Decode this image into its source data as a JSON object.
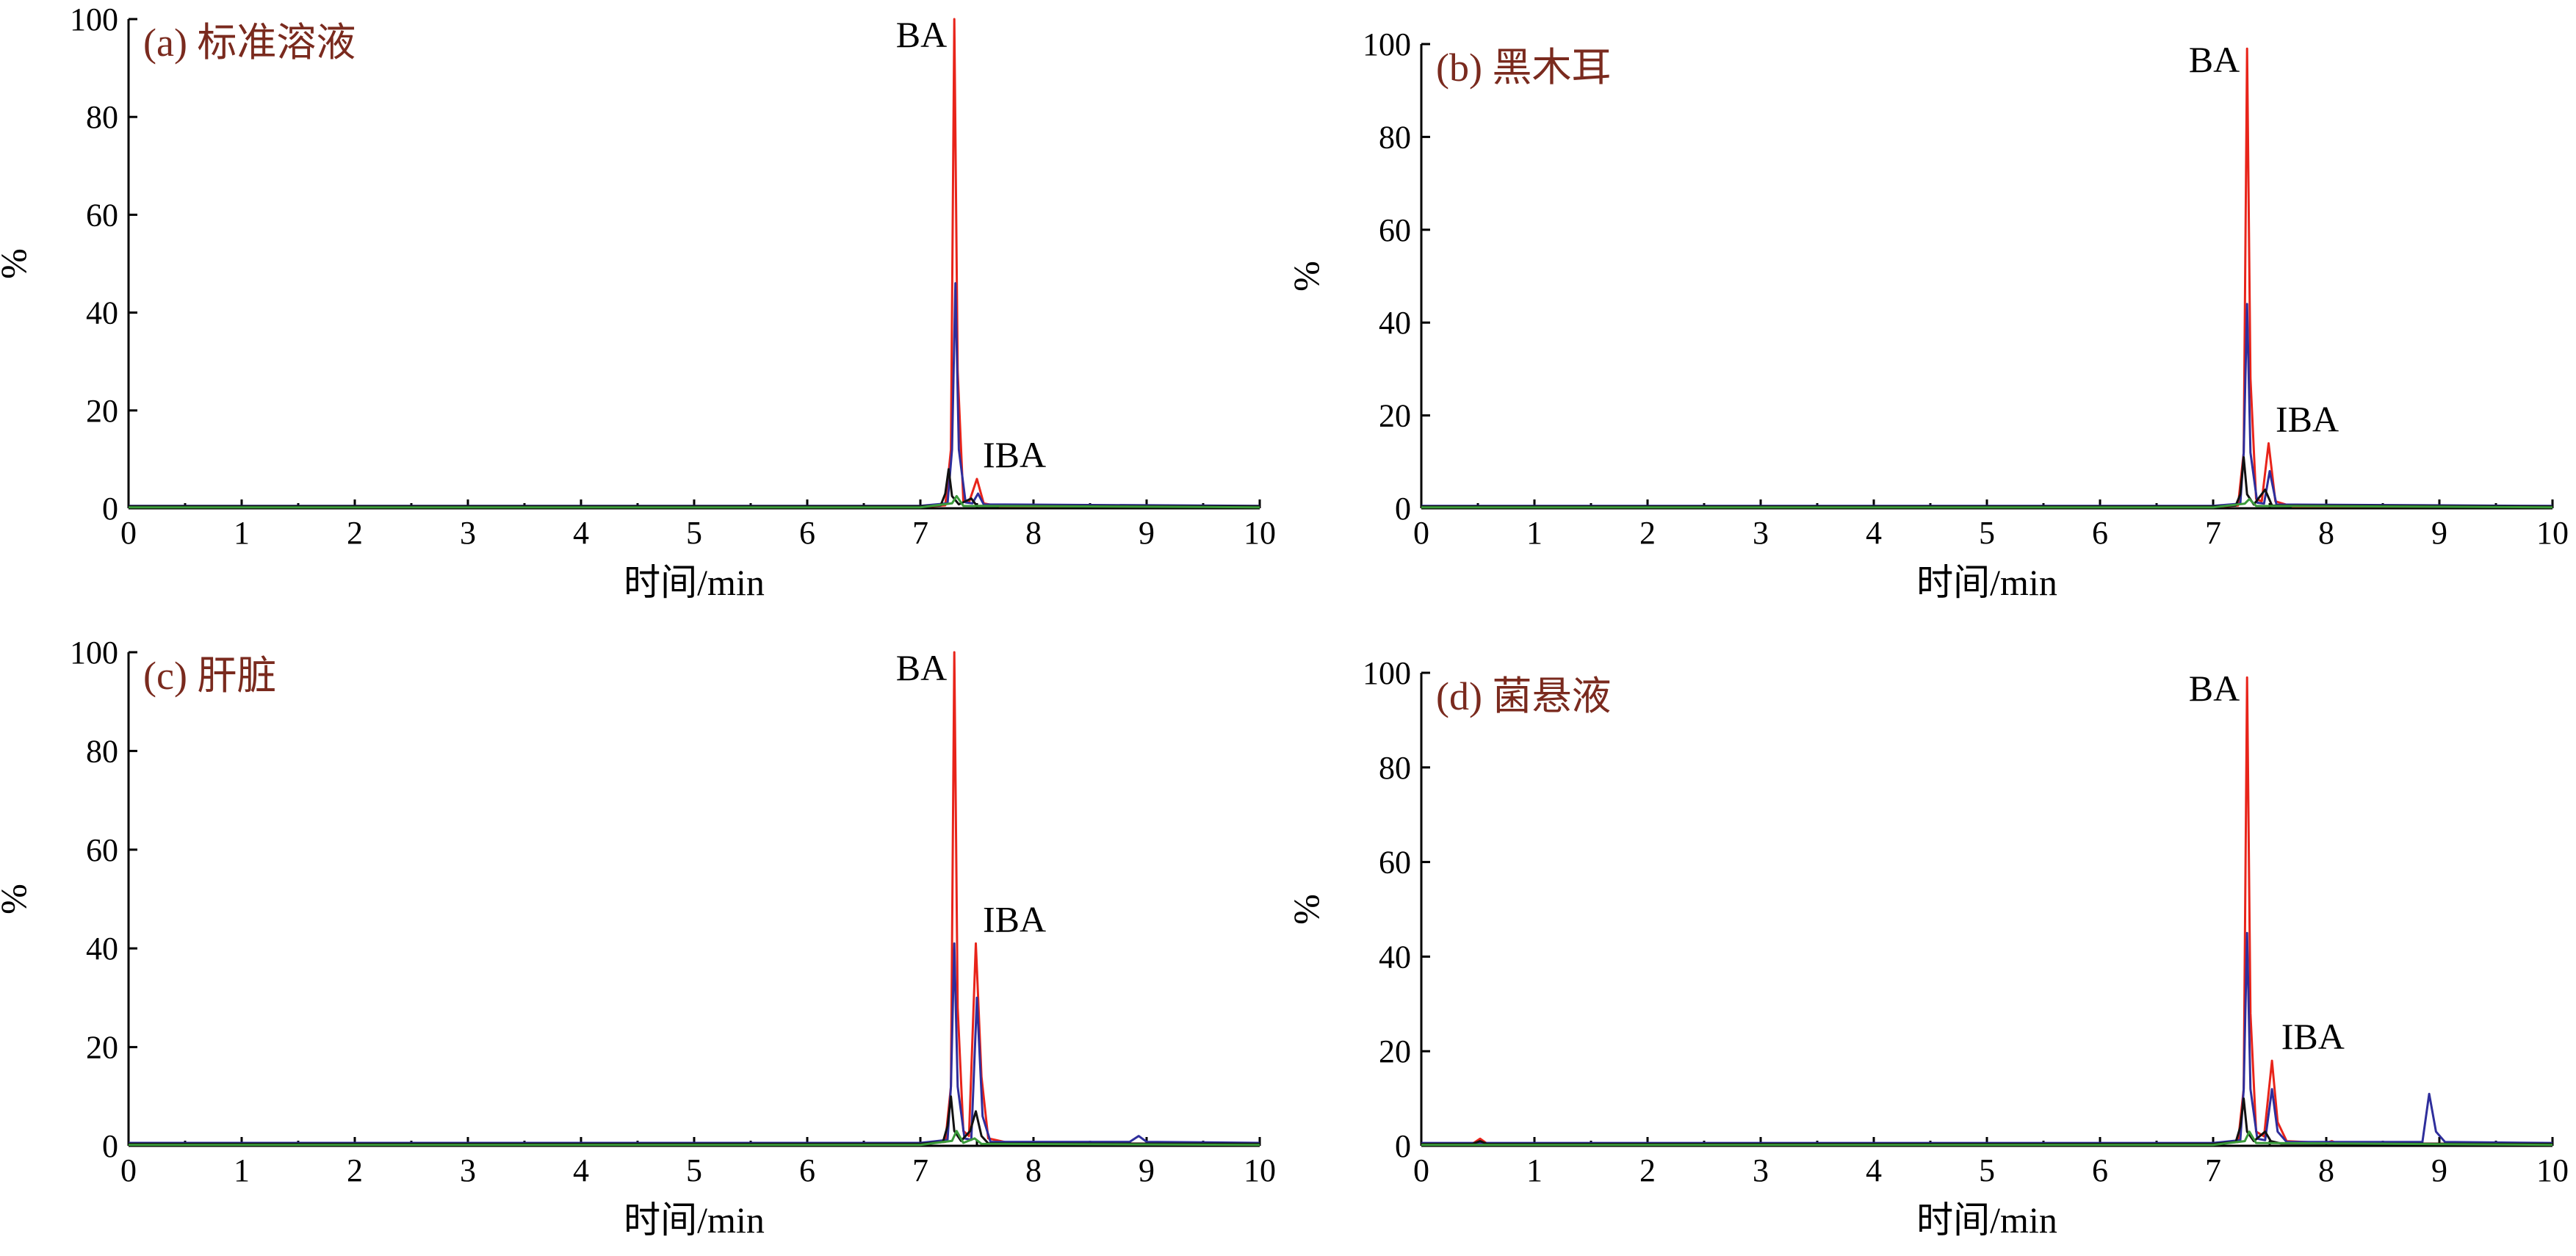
{
  "chart_data": [
    {
      "type": "line",
      "title": "(a) 标准溶液",
      "xlabel": "时间/min",
      "ylabel": "%",
      "xlim": [
        0,
        10
      ],
      "ylim": [
        0,
        100
      ],
      "xticks": [
        "0",
        "1",
        "2",
        "3",
        "4",
        "5",
        "6",
        "7",
        "8",
        "9",
        "10"
      ],
      "yticks": [
        "0",
        "20",
        "40",
        "60",
        "80",
        "100"
      ],
      "annotations": [
        {
          "text": "BA",
          "x": 7.3,
          "y": 100
        },
        {
          "text": "IBA",
          "x": 7.5,
          "y": 6
        }
      ],
      "series": [
        {
          "color": "#e8241a",
          "points": [
            [
              0,
              0.3
            ],
            [
              7.0,
              0.3
            ],
            [
              7.22,
              0.6
            ],
            [
              7.27,
              12
            ],
            [
              7.3,
              100
            ],
            [
              7.33,
              28
            ],
            [
              7.38,
              1.5
            ],
            [
              7.43,
              1.2
            ],
            [
              7.5,
              6
            ],
            [
              7.56,
              1
            ],
            [
              7.7,
              0.4
            ],
            [
              10,
              0.3
            ]
          ]
        },
        {
          "color": "#2e2e9c",
          "points": [
            [
              0,
              0.5
            ],
            [
              7.0,
              0.5
            ],
            [
              7.24,
              1
            ],
            [
              7.28,
              12
            ],
            [
              7.31,
              46
            ],
            [
              7.34,
              12
            ],
            [
              7.4,
              1.2
            ],
            [
              7.46,
              1
            ],
            [
              7.51,
              3
            ],
            [
              7.56,
              0.8
            ],
            [
              10,
              0.5
            ]
          ]
        },
        {
          "color": "#111111",
          "points": [
            [
              0,
              0.4
            ],
            [
              7.0,
              0.4
            ],
            [
              7.18,
              0.6
            ],
            [
              7.22,
              3
            ],
            [
              7.25,
              8
            ],
            [
              7.28,
              2.5
            ],
            [
              7.34,
              0.8
            ],
            [
              7.45,
              2
            ],
            [
              7.5,
              0.5
            ],
            [
              10,
              0.4
            ]
          ]
        },
        {
          "color": "#3a9a3a",
          "points": [
            [
              0,
              0.2
            ],
            [
              7.0,
              0.2
            ],
            [
              7.28,
              1
            ],
            [
              7.32,
              2.5
            ],
            [
              7.38,
              0.5
            ],
            [
              10,
              0.2
            ]
          ]
        }
      ]
    },
    {
      "type": "line",
      "title": "(b) 黑木耳",
      "xlabel": "时间/min",
      "ylabel": "%",
      "xlim": [
        0,
        10
      ],
      "ylim": [
        0,
        100
      ],
      "xticks": [
        "0",
        "1",
        "2",
        "3",
        "4",
        "5",
        "6",
        "7",
        "8",
        "9",
        "10"
      ],
      "yticks": [
        "0",
        "20",
        "40",
        "60",
        "80",
        "100"
      ],
      "annotations": [
        {
          "text": "BA",
          "x": 7.3,
          "y": 100
        },
        {
          "text": "IBA",
          "x": 7.5,
          "y": 14
        }
      ],
      "series": [
        {
          "color": "#e8241a",
          "points": [
            [
              0,
              0.3
            ],
            [
              7.0,
              0.3
            ],
            [
              7.22,
              0.6
            ],
            [
              7.27,
              12
            ],
            [
              7.3,
              99
            ],
            [
              7.33,
              28
            ],
            [
              7.38,
              2
            ],
            [
              7.43,
              1.5
            ],
            [
              7.49,
              14
            ],
            [
              7.55,
              1.5
            ],
            [
              7.7,
              0.4
            ],
            [
              10,
              0.3
            ]
          ]
        },
        {
          "color": "#2e2e9c",
          "points": [
            [
              0,
              0.5
            ],
            [
              7.0,
              0.5
            ],
            [
              7.24,
              1
            ],
            [
              7.27,
              12
            ],
            [
              7.3,
              44
            ],
            [
              7.33,
              12
            ],
            [
              7.39,
              1.2
            ],
            [
              7.45,
              1
            ],
            [
              7.5,
              8
            ],
            [
              7.56,
              0.8
            ],
            [
              10,
              0.5
            ]
          ]
        },
        {
          "color": "#111111",
          "points": [
            [
              0,
              0.4
            ],
            [
              7.0,
              0.4
            ],
            [
              7.2,
              0.6
            ],
            [
              7.24,
              3
            ],
            [
              7.27,
              11
            ],
            [
              7.3,
              3
            ],
            [
              7.36,
              0.8
            ],
            [
              7.46,
              4
            ],
            [
              7.52,
              0.6
            ],
            [
              10,
              0.4
            ]
          ]
        },
        {
          "color": "#3a9a3a",
          "points": [
            [
              0,
              0.2
            ],
            [
              7.0,
              0.2
            ],
            [
              7.28,
              1
            ],
            [
              7.32,
              2
            ],
            [
              7.38,
              0.5
            ],
            [
              10,
              0.2
            ]
          ]
        }
      ]
    },
    {
      "type": "line",
      "title": "(c) 肝脏",
      "xlabel": "时间/min",
      "ylabel": "%",
      "xlim": [
        0,
        10
      ],
      "ylim": [
        0,
        100
      ],
      "xticks": [
        "0",
        "1",
        "2",
        "3",
        "4",
        "5",
        "6",
        "7",
        "8",
        "9",
        "10"
      ],
      "yticks": [
        "0",
        "20",
        "40",
        "60",
        "80",
        "100"
      ],
      "annotations": [
        {
          "text": "BA",
          "x": 7.3,
          "y": 100
        },
        {
          "text": "IBA",
          "x": 7.5,
          "y": 41
        }
      ],
      "series": [
        {
          "color": "#e8241a",
          "points": [
            [
              0,
              0.4
            ],
            [
              7.0,
              0.4
            ],
            [
              7.22,
              0.8
            ],
            [
              7.27,
              12
            ],
            [
              7.3,
              100
            ],
            [
              7.33,
              28
            ],
            [
              7.38,
              3
            ],
            [
              7.43,
              2
            ],
            [
              7.49,
              41
            ],
            [
              7.54,
              14
            ],
            [
              7.6,
              1.5
            ],
            [
              7.8,
              0.5
            ],
            [
              10,
              0.4
            ]
          ]
        },
        {
          "color": "#2e2e9c",
          "points": [
            [
              0,
              0.6
            ],
            [
              7.0,
              0.6
            ],
            [
              7.24,
              1.2
            ],
            [
              7.27,
              12
            ],
            [
              7.3,
              41
            ],
            [
              7.33,
              12
            ],
            [
              7.39,
              1.5
            ],
            [
              7.45,
              1.2
            ],
            [
              7.5,
              30
            ],
            [
              7.55,
              6
            ],
            [
              7.62,
              0.8
            ],
            [
              8.85,
              0.8
            ],
            [
              8.93,
              2
            ],
            [
              9.0,
              0.8
            ],
            [
              10,
              0.6
            ]
          ]
        },
        {
          "color": "#111111",
          "points": [
            [
              0,
              0.4
            ],
            [
              7.0,
              0.4
            ],
            [
              7.2,
              0.8
            ],
            [
              7.24,
              4
            ],
            [
              7.27,
              10
            ],
            [
              7.3,
              3
            ],
            [
              7.36,
              1
            ],
            [
              7.44,
              3
            ],
            [
              7.49,
              7
            ],
            [
              7.54,
              2
            ],
            [
              7.6,
              0.5
            ],
            [
              10,
              0.4
            ]
          ]
        },
        {
          "color": "#3a9a3a",
          "points": [
            [
              0,
              0.2
            ],
            [
              7.0,
              0.2
            ],
            [
              7.28,
              1
            ],
            [
              7.32,
              3
            ],
            [
              7.38,
              0.6
            ],
            [
              7.48,
              1.5
            ],
            [
              7.54,
              0.4
            ],
            [
              10,
              0.2
            ]
          ]
        }
      ]
    },
    {
      "type": "line",
      "title": "(d) 菌悬液",
      "xlabel": "时间/min",
      "ylabel": "%",
      "xlim": [
        0,
        10
      ],
      "ylim": [
        0,
        100
      ],
      "xticks": [
        "0",
        "1",
        "2",
        "3",
        "4",
        "5",
        "6",
        "7",
        "8",
        "9",
        "10"
      ],
      "yticks": [
        "0",
        "20",
        "40",
        "60",
        "80",
        "100"
      ],
      "annotations": [
        {
          "text": "BA",
          "x": 7.3,
          "y": 100
        },
        {
          "text": "IBA",
          "x": 7.55,
          "y": 18
        }
      ],
      "series": [
        {
          "color": "#e8241a",
          "points": [
            [
              0,
              0.4
            ],
            [
              0.45,
              0.4
            ],
            [
              0.52,
              1.5
            ],
            [
              0.58,
              0.5
            ],
            [
              7.0,
              0.4
            ],
            [
              7.22,
              0.8
            ],
            [
              7.27,
              12
            ],
            [
              7.3,
              99
            ],
            [
              7.33,
              28
            ],
            [
              7.38,
              3
            ],
            [
              7.45,
              2
            ],
            [
              7.52,
              18
            ],
            [
              7.57,
              5
            ],
            [
              7.65,
              1
            ],
            [
              8.0,
              0.6
            ],
            [
              8.05,
              1
            ],
            [
              8.1,
              0.5
            ],
            [
              10,
              0.4
            ]
          ]
        },
        {
          "color": "#2e2e9c",
          "points": [
            [
              0,
              0.6
            ],
            [
              7.0,
              0.6
            ],
            [
              7.24,
              1.2
            ],
            [
              7.27,
              12
            ],
            [
              7.3,
              45
            ],
            [
              7.33,
              12
            ],
            [
              7.39,
              1.5
            ],
            [
              7.46,
              1.2
            ],
            [
              7.52,
              12
            ],
            [
              7.57,
              3
            ],
            [
              7.65,
              0.8
            ],
            [
              8.85,
              0.8
            ],
            [
              8.91,
              11
            ],
            [
              8.97,
              3
            ],
            [
              9.05,
              0.8
            ],
            [
              10,
              0.6
            ]
          ]
        },
        {
          "color": "#111111",
          "points": [
            [
              0,
              0.4
            ],
            [
              0.45,
              0.4
            ],
            [
              0.52,
              1
            ],
            [
              0.58,
              0.4
            ],
            [
              7.0,
              0.4
            ],
            [
              7.2,
              0.8
            ],
            [
              7.24,
              4
            ],
            [
              7.27,
              10
            ],
            [
              7.3,
              3
            ],
            [
              7.36,
              1
            ],
            [
              7.46,
              3
            ],
            [
              7.51,
              1
            ],
            [
              7.6,
              0.5
            ],
            [
              10,
              0.4
            ]
          ]
        },
        {
          "color": "#3a9a3a",
          "points": [
            [
              0,
              0.2
            ],
            [
              7.0,
              0.2
            ],
            [
              7.28,
              1
            ],
            [
              7.32,
              3
            ],
            [
              7.38,
              0.6
            ],
            [
              10,
              0.2
            ]
          ]
        }
      ]
    }
  ]
}
